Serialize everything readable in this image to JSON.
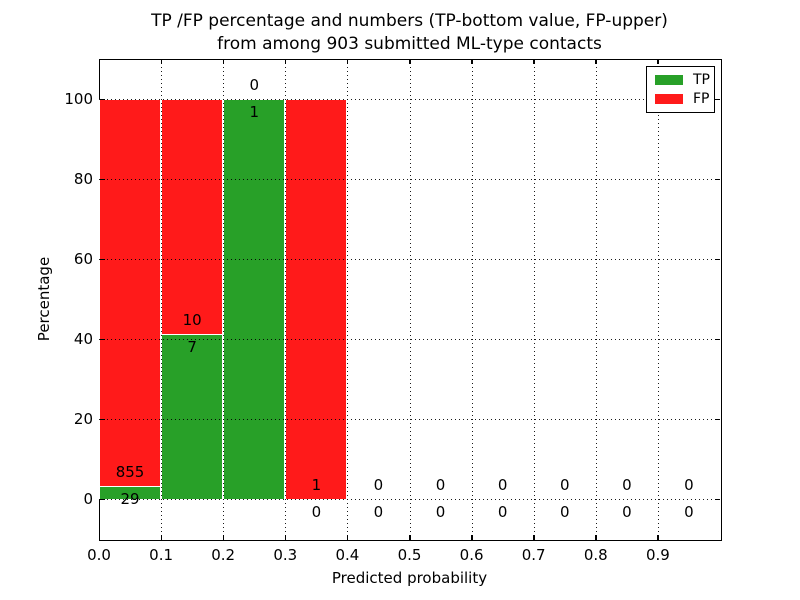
{
  "figure": {
    "title_line1": "TP /FP percentage and numbers (TP-bottom value, FP-upper)",
    "title_line2": "from among 903 submitted ML-type contacts",
    "xlabel": "Predicted probability",
    "ylabel": "Percentage"
  },
  "legend": {
    "items": [
      {
        "label": "TP",
        "color": "#28a028"
      },
      {
        "label": "FP",
        "color": "#ff1a1a"
      }
    ]
  },
  "chart_data": {
    "type": "bar",
    "subtype": "stacked_percentage_histogram",
    "title": "TP /FP percentage and numbers (TP-bottom value, FP-upper)\nfrom among 903 submitted ML-type contacts",
    "xlabel": "Predicted probability",
    "ylabel": "Percentage",
    "xlim": [
      0.0,
      1.0
    ],
    "ylim": [
      -10,
      110
    ],
    "grid": true,
    "grid_style": "dotted",
    "legend_position": "upper right",
    "bar_edge_color": "#ffffff",
    "annotation_rule": "fp_count_above_tp_count_below",
    "series": [
      {
        "name": "TP",
        "color": "#28a028"
      },
      {
        "name": "FP",
        "color": "#ff1a1a"
      }
    ],
    "xticks": [
      {
        "value": 0.0,
        "label": "0.0"
      },
      {
        "value": 0.1,
        "label": "0.1"
      },
      {
        "value": 0.2,
        "label": "0.2"
      },
      {
        "value": 0.3,
        "label": "0.3"
      },
      {
        "value": 0.4,
        "label": "0.4"
      },
      {
        "value": 0.5,
        "label": "0.5"
      },
      {
        "value": 0.6,
        "label": "0.6"
      },
      {
        "value": 0.7,
        "label": "0.7"
      },
      {
        "value": 0.8,
        "label": "0.8"
      },
      {
        "value": 0.9,
        "label": "0.9"
      }
    ],
    "yticks": [
      {
        "value": 0,
        "label": "0"
      },
      {
        "value": 20,
        "label": "20"
      },
      {
        "value": 40,
        "label": "40"
      },
      {
        "value": 60,
        "label": "60"
      },
      {
        "value": 80,
        "label": "80"
      },
      {
        "value": 100,
        "label": "100"
      }
    ],
    "bins": [
      {
        "range": [
          0.0,
          0.1
        ],
        "tp": 29,
        "fp": 855,
        "tp_pct": 3.28,
        "fp_pct": 96.72
      },
      {
        "range": [
          0.1,
          0.2
        ],
        "tp": 7,
        "fp": 10,
        "tp_pct": 41.18,
        "fp_pct": 58.82
      },
      {
        "range": [
          0.2,
          0.3
        ],
        "tp": 1,
        "fp": 0,
        "tp_pct": 100.0,
        "fp_pct": 0.0
      },
      {
        "range": [
          0.3,
          0.4
        ],
        "tp": 0,
        "fp": 1,
        "tp_pct": 0.0,
        "fp_pct": 100.0
      },
      {
        "range": [
          0.4,
          0.5
        ],
        "tp": 0,
        "fp": 0,
        "tp_pct": 0.0,
        "fp_pct": 0.0
      },
      {
        "range": [
          0.5,
          0.6
        ],
        "tp": 0,
        "fp": 0,
        "tp_pct": 0.0,
        "fp_pct": 0.0
      },
      {
        "range": [
          0.6,
          0.7
        ],
        "tp": 0,
        "fp": 0,
        "tp_pct": 0.0,
        "fp_pct": 0.0
      },
      {
        "range": [
          0.7,
          0.8
        ],
        "tp": 0,
        "fp": 0,
        "tp_pct": 0.0,
        "fp_pct": 0.0
      },
      {
        "range": [
          0.8,
          0.9
        ],
        "tp": 0,
        "fp": 0,
        "tp_pct": 0.0,
        "fp_pct": 0.0
      },
      {
        "range": [
          0.9,
          1.0
        ],
        "tp": 0,
        "fp": 0,
        "tp_pct": 0.0,
        "fp_pct": 0.0
      }
    ]
  }
}
